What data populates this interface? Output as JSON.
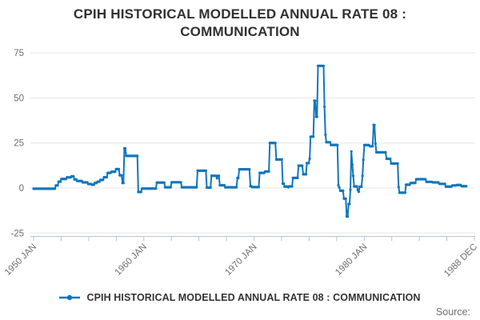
{
  "title": "CPIH HISTORICAL MODELLED ANNUAL RATE 08 : COMMUNICATION",
  "legend": {
    "label": "CPIH HISTORICAL MODELLED ANNUAL RATE 08 : COMMUNICATION"
  },
  "source": {
    "label": "Source:"
  },
  "colors": {
    "series": "#1076bc",
    "grid": "#e6e6e6",
    "axis": "#b6c6db",
    "tick_text": "#6e6e6e",
    "title_text": "#303030",
    "legend_text": "#333333",
    "source_text": "#707070",
    "background": "#ffffff"
  },
  "chart_data": {
    "type": "line",
    "title": "CPIH HISTORICAL MODELLED ANNUAL RATE 08 : COMMUNICATION",
    "legend_entries": [
      "CPIH HISTORICAL MODELLED ANNUAL RATE 08 : COMMUNICATION"
    ],
    "legend_position": "bottom",
    "grid": "horizontal-only",
    "x_unit": "months since 1950 JAN, monthly data",
    "x_range_labels": [
      "1950 JAN",
      "1988 DEC"
    ],
    "x_tick_labels": [
      "1950 JAN",
      "1960 JAN",
      "1970 JAN",
      "1980 JAN",
      "1988 DEC"
    ],
    "x_minor_ticks_between_major": 3,
    "x_total_ticks": 17,
    "ylim": [
      -25,
      75
    ],
    "y_ticks": [
      75,
      50,
      25,
      0,
      -25
    ],
    "series": [
      {
        "name": "CPIH HISTORICAL MODELLED ANNUAL RATE 08 : COMMUNICATION",
        "note_on_format": "step segments read off the plot: [startMonthIndex, endMonthIndex, annualRatePercent]; month 0 = 1950 JAN, month 467 = 1988 DEC",
        "segments": [
          [
            0,
            23,
            -0.4
          ],
          [
            24,
            26,
            1.4
          ],
          [
            27,
            29,
            3.5
          ],
          [
            30,
            35,
            5.0
          ],
          [
            36,
            40,
            5.9
          ],
          [
            41,
            43,
            6.5
          ],
          [
            44,
            46,
            4.8
          ],
          [
            47,
            52,
            3.9
          ],
          [
            53,
            58,
            3.1
          ],
          [
            59,
            62,
            2.2
          ],
          [
            63,
            65,
            1.8
          ],
          [
            66,
            68,
            2.8
          ],
          [
            69,
            71,
            3.5
          ],
          [
            72,
            75,
            4.5
          ],
          [
            76,
            79,
            6.0
          ],
          [
            80,
            83,
            8.4
          ],
          [
            84,
            88,
            9.0
          ],
          [
            89,
            92,
            10.5
          ],
          [
            93,
            95,
            7.0
          ],
          [
            96,
            97,
            2.8
          ],
          [
            98,
            99,
            22.0
          ],
          [
            100,
            112,
            17.8
          ],
          [
            113,
            116,
            -2.2
          ],
          [
            117,
            132,
            -0.3
          ],
          [
            133,
            141,
            3.0
          ],
          [
            142,
            148,
            0.4
          ],
          [
            149,
            159,
            3.2
          ],
          [
            160,
            176,
            0.4
          ],
          [
            177,
            186,
            9.6
          ],
          [
            187,
            191,
            0.2
          ],
          [
            192,
            197,
            6.8
          ],
          [
            198,
            198,
            5.4
          ],
          [
            199,
            200,
            6.8
          ],
          [
            201,
            206,
            1.5
          ],
          [
            207,
            219,
            0.4
          ],
          [
            220,
            221,
            5.6
          ],
          [
            222,
            233,
            10.4
          ],
          [
            234,
            235,
            1.0
          ],
          [
            236,
            243,
            0.5
          ],
          [
            244,
            249,
            8.4
          ],
          [
            250,
            254,
            9.2
          ],
          [
            255,
            261,
            25.0
          ],
          [
            262,
            268,
            15.8
          ],
          [
            269,
            270,
            2.4
          ],
          [
            271,
            274,
            0.8
          ],
          [
            275,
            275,
            0.4
          ],
          [
            276,
            279,
            0.9
          ],
          [
            280,
            285,
            5.6
          ],
          [
            286,
            290,
            12.4
          ],
          [
            291,
            294,
            7.6
          ],
          [
            295,
            297,
            13.8
          ],
          [
            298,
            298,
            16.3
          ],
          [
            299,
            302,
            28.5
          ],
          [
            303,
            304,
            48.5
          ],
          [
            305,
            306,
            39.5
          ],
          [
            307,
            313,
            67.8
          ],
          [
            314,
            314,
            45.1
          ],
          [
            315,
            315,
            29.6
          ],
          [
            316,
            320,
            25.4
          ],
          [
            321,
            328,
            23.9
          ],
          [
            329,
            329,
            1.5
          ],
          [
            330,
            330,
            0.3
          ],
          [
            331,
            334,
            -1.5
          ],
          [
            335,
            337,
            -5.9
          ],
          [
            338,
            339,
            -15.8
          ],
          [
            340,
            341,
            -8.9
          ],
          [
            342,
            342,
            -1.0
          ],
          [
            343,
            343,
            20.3
          ],
          [
            344,
            344,
            12.9
          ],
          [
            345,
            345,
            6.8
          ],
          [
            346,
            349,
            0.9
          ],
          [
            350,
            350,
            -1.1
          ],
          [
            351,
            351,
            -2.1
          ],
          [
            352,
            354,
            0.7
          ],
          [
            355,
            355,
            6.8
          ],
          [
            356,
            356,
            15.6
          ],
          [
            357,
            362,
            23.8
          ],
          [
            363,
            366,
            23.2
          ],
          [
            367,
            368,
            35.0
          ],
          [
            369,
            369,
            24.6
          ],
          [
            370,
            380,
            19.8
          ],
          [
            381,
            385,
            16.2
          ],
          [
            386,
            393,
            13.6
          ],
          [
            394,
            394,
            0.5
          ],
          [
            395,
            401,
            -2.6
          ],
          [
            402,
            406,
            1.8
          ],
          [
            407,
            412,
            2.8
          ],
          [
            413,
            423,
            4.9
          ],
          [
            424,
            430,
            3.4
          ],
          [
            431,
            437,
            3.1
          ],
          [
            438,
            444,
            2.3
          ],
          [
            445,
            451,
            0.8
          ],
          [
            452,
            456,
            1.4
          ],
          [
            457,
            461,
            1.7
          ],
          [
            462,
            467,
            1.0
          ]
        ]
      }
    ]
  }
}
